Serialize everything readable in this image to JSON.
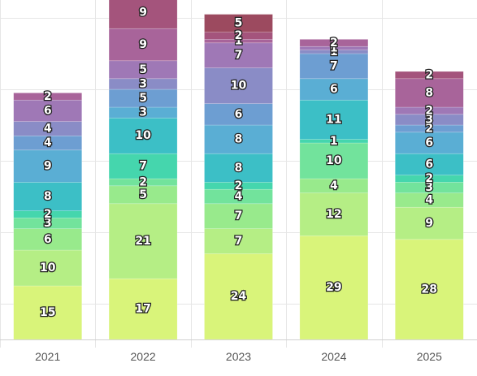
{
  "chart_data": {
    "type": "bar",
    "stacked": true,
    "categories": [
      "2021",
      "2022",
      "2023",
      "2024",
      "2025"
    ],
    "series": [
      {
        "values": [
          15,
          17,
          24,
          29,
          28
        ],
        "color": "#d9f47a"
      },
      {
        "values": [
          10,
          21,
          7,
          12,
          9
        ],
        "color": "#b5ee85"
      },
      {
        "values": [
          6,
          5,
          7,
          4,
          4
        ],
        "color": "#98ea8c"
      },
      {
        "values": [
          3,
          2,
          4,
          10,
          3
        ],
        "color": "#72e39c"
      },
      {
        "values": [
          2,
          7,
          2,
          1,
          2
        ],
        "color": "#45d6ad"
      },
      {
        "values": [
          8,
          10,
          8,
          11,
          6
        ],
        "color": "#3cbfc6"
      },
      {
        "values": [
          9,
          3,
          8,
          6,
          6
        ],
        "color": "#5aaed4"
      },
      {
        "values": [
          4,
          5,
          6,
          7,
          2
        ],
        "color": "#6d9ed2"
      },
      {
        "values": [
          4,
          3,
          10,
          1,
          3
        ],
        "color": "#8a8cc6"
      },
      {
        "values": [
          6,
          5,
          7,
          1,
          2
        ],
        "color": "#9f78b6"
      },
      {
        "values": [
          2,
          9,
          1,
          2,
          8
        ],
        "color": "#a8649a"
      },
      {
        "values": [
          0,
          9,
          2,
          0,
          2
        ],
        "color": "#a4547c"
      },
      {
        "values": [
          0,
          0,
          5,
          0,
          0
        ],
        "color": "#9c4a5f"
      }
    ],
    "ylim": [
      0,
      95
    ],
    "grid": true,
    "legend": "none",
    "xlabel": "",
    "ylabel": "",
    "title": ""
  }
}
